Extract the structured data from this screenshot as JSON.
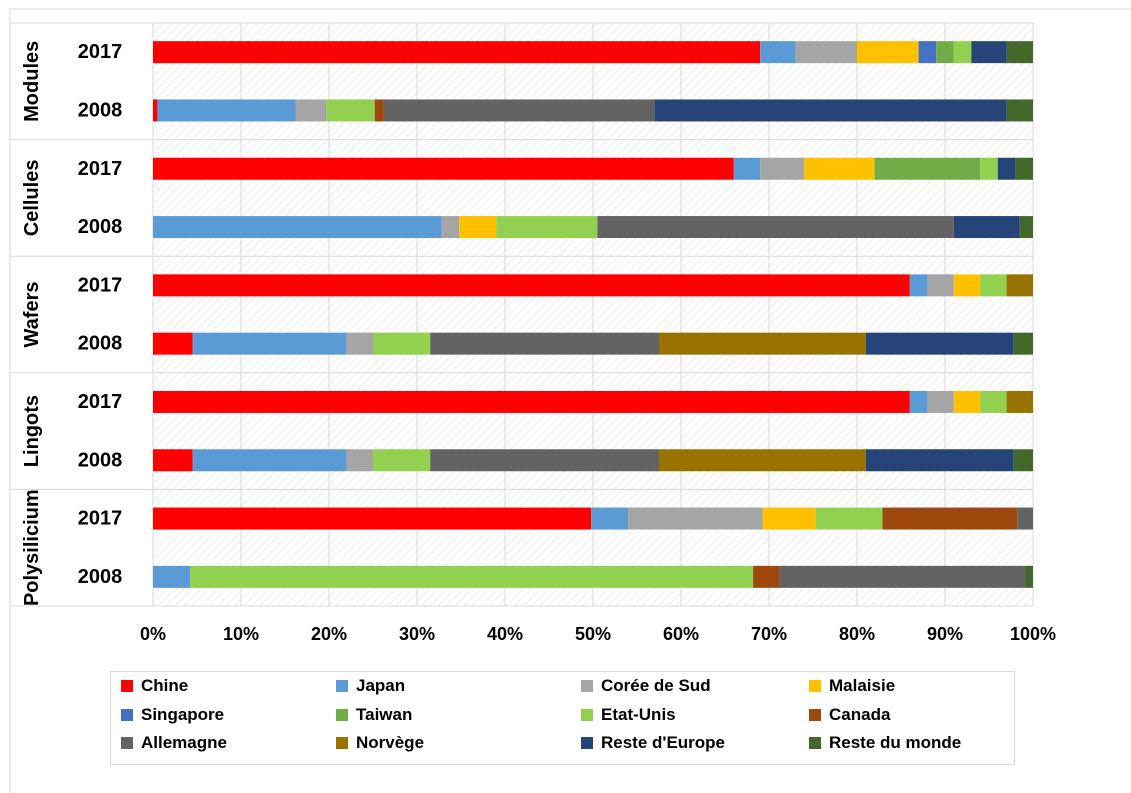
{
  "chart_data": {
    "type": "bar",
    "orientation": "horizontal",
    "stacked": "percent",
    "groups": [
      "Modules",
      "Cellules",
      "Wafers",
      "Lingots",
      "Polysilicium"
    ],
    "categories": [
      "2017",
      "2008",
      "2017",
      "2008",
      "2017",
      "2008",
      "2017",
      "2008",
      "2017",
      "2008"
    ],
    "x_ticks": [
      "0%",
      "10%",
      "20%",
      "30%",
      "40%",
      "50%",
      "60%",
      "70%",
      "80%",
      "90%",
      "100%"
    ],
    "xlim": [
      0,
      100
    ],
    "grid": true,
    "legend_position": "bottom",
    "series": [
      {
        "name": "Chine",
        "color": "#ff0000",
        "values": [
          69,
          0.5,
          66,
          0,
          86,
          4.5,
          86,
          4.5,
          49.8,
          0
        ]
      },
      {
        "name": "Japan",
        "color": "#5b9bd5",
        "values": [
          4,
          15.7,
          3,
          32.8,
          2,
          17.5,
          2,
          17.5,
          4.2,
          4.2
        ]
      },
      {
        "name": "Corée de Sud",
        "color": "#a5a5a5",
        "values": [
          7,
          3.5,
          5,
          2,
          3,
          3,
          3,
          3,
          15.3,
          0
        ]
      },
      {
        "name": "Malaisie",
        "color": "#ffc000",
        "values": [
          7,
          0,
          8,
          4.2,
          3,
          0,
          3,
          0,
          6,
          0
        ]
      },
      {
        "name": "Singapore",
        "color": "#4472c4",
        "values": [
          2,
          0,
          0,
          0,
          0,
          0,
          0,
          0,
          0,
          0
        ]
      },
      {
        "name": "Taiwan",
        "color": "#70ad47",
        "values": [
          2,
          0,
          12,
          0,
          0,
          0,
          0,
          0,
          0,
          0
        ]
      },
      {
        "name": "Etat-Unis",
        "color": "#92d050",
        "values": [
          2,
          5.5,
          2,
          11.5,
          3,
          6.5,
          3,
          6.5,
          7.6,
          64
        ]
      },
      {
        "name": "Canada",
        "color": "#9e480e",
        "values": [
          0,
          1,
          0,
          0,
          0,
          0,
          0,
          0,
          15.3,
          3
        ]
      },
      {
        "name": "Allemagne",
        "color": "#636363",
        "values": [
          0,
          30.8,
          0,
          40.5,
          0,
          26,
          0,
          26,
          1.8,
          27.9
        ]
      },
      {
        "name": "Norvège",
        "color": "#997300",
        "values": [
          0,
          0,
          0,
          0,
          3,
          23.5,
          3,
          23.5,
          0,
          0
        ]
      },
      {
        "name": "Reste d'Europe",
        "color": "#264478",
        "values": [
          4,
          40,
          2,
          7.5,
          0,
          16.8,
          0,
          16.8,
          0,
          0
        ]
      },
      {
        "name": "Reste du monde",
        "color": "#43682b",
        "values": [
          3,
          3,
          2,
          1.5,
          0,
          2.2,
          0,
          2.2,
          0,
          0.9
        ]
      }
    ]
  }
}
